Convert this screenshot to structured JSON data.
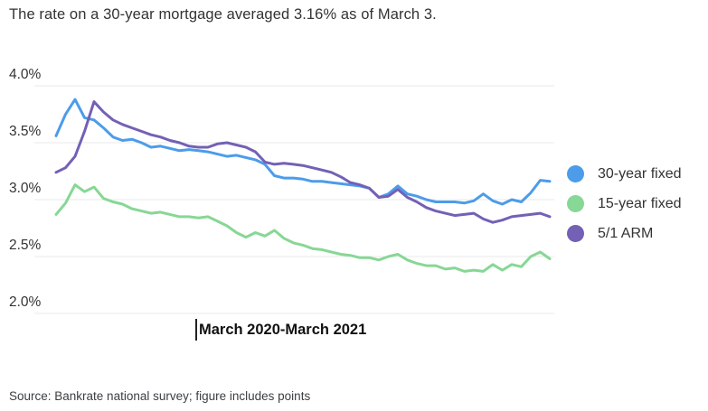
{
  "title": "The rate on a 30-year mortgage averaged 3.16% as of March 3.",
  "x_axis_label": "March 2020-March 2021",
  "source": "Source: Bankrate national survey; figure includes points",
  "colors": {
    "thirty_year": "#4c9cea",
    "fifteen_year": "#87d795",
    "arm": "#7460b5",
    "gridline": "#e9e9e9"
  },
  "chart_data": {
    "type": "line",
    "title": "The rate on a 30-year mortgage averaged 3.16% as of March 3.",
    "xlabel": "March 2020-March 2021",
    "ylabel": "",
    "x_unit": "week",
    "n_points": 53,
    "ylim": [
      2.0,
      4.0
    ],
    "y_ticks": [
      {
        "value": 4.0,
        "label": "4.0%"
      },
      {
        "value": 3.5,
        "label": "3.5%"
      },
      {
        "value": 3.0,
        "label": "3.0%"
      },
      {
        "value": 2.5,
        "label": "2.5%"
      },
      {
        "value": 2.0,
        "label": "2.0%"
      }
    ],
    "grid": true,
    "legend_position": "right",
    "series": [
      {
        "name": "30-year fixed",
        "color": "#4c9cea",
        "values": [
          3.56,
          3.75,
          3.88,
          3.72,
          3.7,
          3.63,
          3.55,
          3.52,
          3.53,
          3.5,
          3.46,
          3.47,
          3.45,
          3.43,
          3.44,
          3.43,
          3.42,
          3.4,
          3.38,
          3.39,
          3.37,
          3.35,
          3.31,
          3.21,
          3.19,
          3.19,
          3.18,
          3.16,
          3.16,
          3.15,
          3.14,
          3.13,
          3.12,
          3.1,
          3.02,
          3.05,
          3.12,
          3.05,
          3.03,
          3.0,
          2.98,
          2.98,
          2.98,
          2.97,
          2.99,
          3.05,
          2.99,
          2.96,
          3.0,
          2.98,
          3.06,
          3.17,
          3.16
        ]
      },
      {
        "name": "15-year fixed",
        "color": "#87d795",
        "values": [
          2.87,
          2.97,
          3.13,
          3.07,
          3.11,
          3.01,
          2.98,
          2.96,
          2.92,
          2.9,
          2.88,
          2.89,
          2.87,
          2.85,
          2.85,
          2.84,
          2.85,
          2.81,
          2.77,
          2.71,
          2.67,
          2.71,
          2.68,
          2.73,
          2.66,
          2.62,
          2.6,
          2.57,
          2.56,
          2.54,
          2.52,
          2.51,
          2.49,
          2.49,
          2.47,
          2.5,
          2.52,
          2.47,
          2.44,
          2.42,
          2.42,
          2.39,
          2.4,
          2.37,
          2.38,
          2.37,
          2.43,
          2.38,
          2.43,
          2.41,
          2.5,
          2.54,
          2.48
        ]
      },
      {
        "name": "5/1 ARM",
        "color": "#7460b5",
        "values": [
          3.24,
          3.28,
          3.38,
          3.6,
          3.86,
          3.77,
          3.7,
          3.66,
          3.63,
          3.6,
          3.57,
          3.55,
          3.52,
          3.5,
          3.47,
          3.46,
          3.46,
          3.49,
          3.5,
          3.48,
          3.46,
          3.42,
          3.33,
          3.31,
          3.32,
          3.31,
          3.3,
          3.28,
          3.26,
          3.24,
          3.2,
          3.15,
          3.13,
          3.1,
          3.02,
          3.03,
          3.09,
          3.02,
          2.98,
          2.93,
          2.9,
          2.88,
          2.86,
          2.87,
          2.88,
          2.83,
          2.8,
          2.82,
          2.85,
          2.86,
          2.87,
          2.88,
          2.85
        ]
      }
    ]
  },
  "legend": [
    {
      "label": "30-year fixed",
      "color": "#4c9cea"
    },
    {
      "label": "15-year fixed",
      "color": "#87d795"
    },
    {
      "label": "5/1 ARM",
      "color": "#7460b5"
    }
  ]
}
